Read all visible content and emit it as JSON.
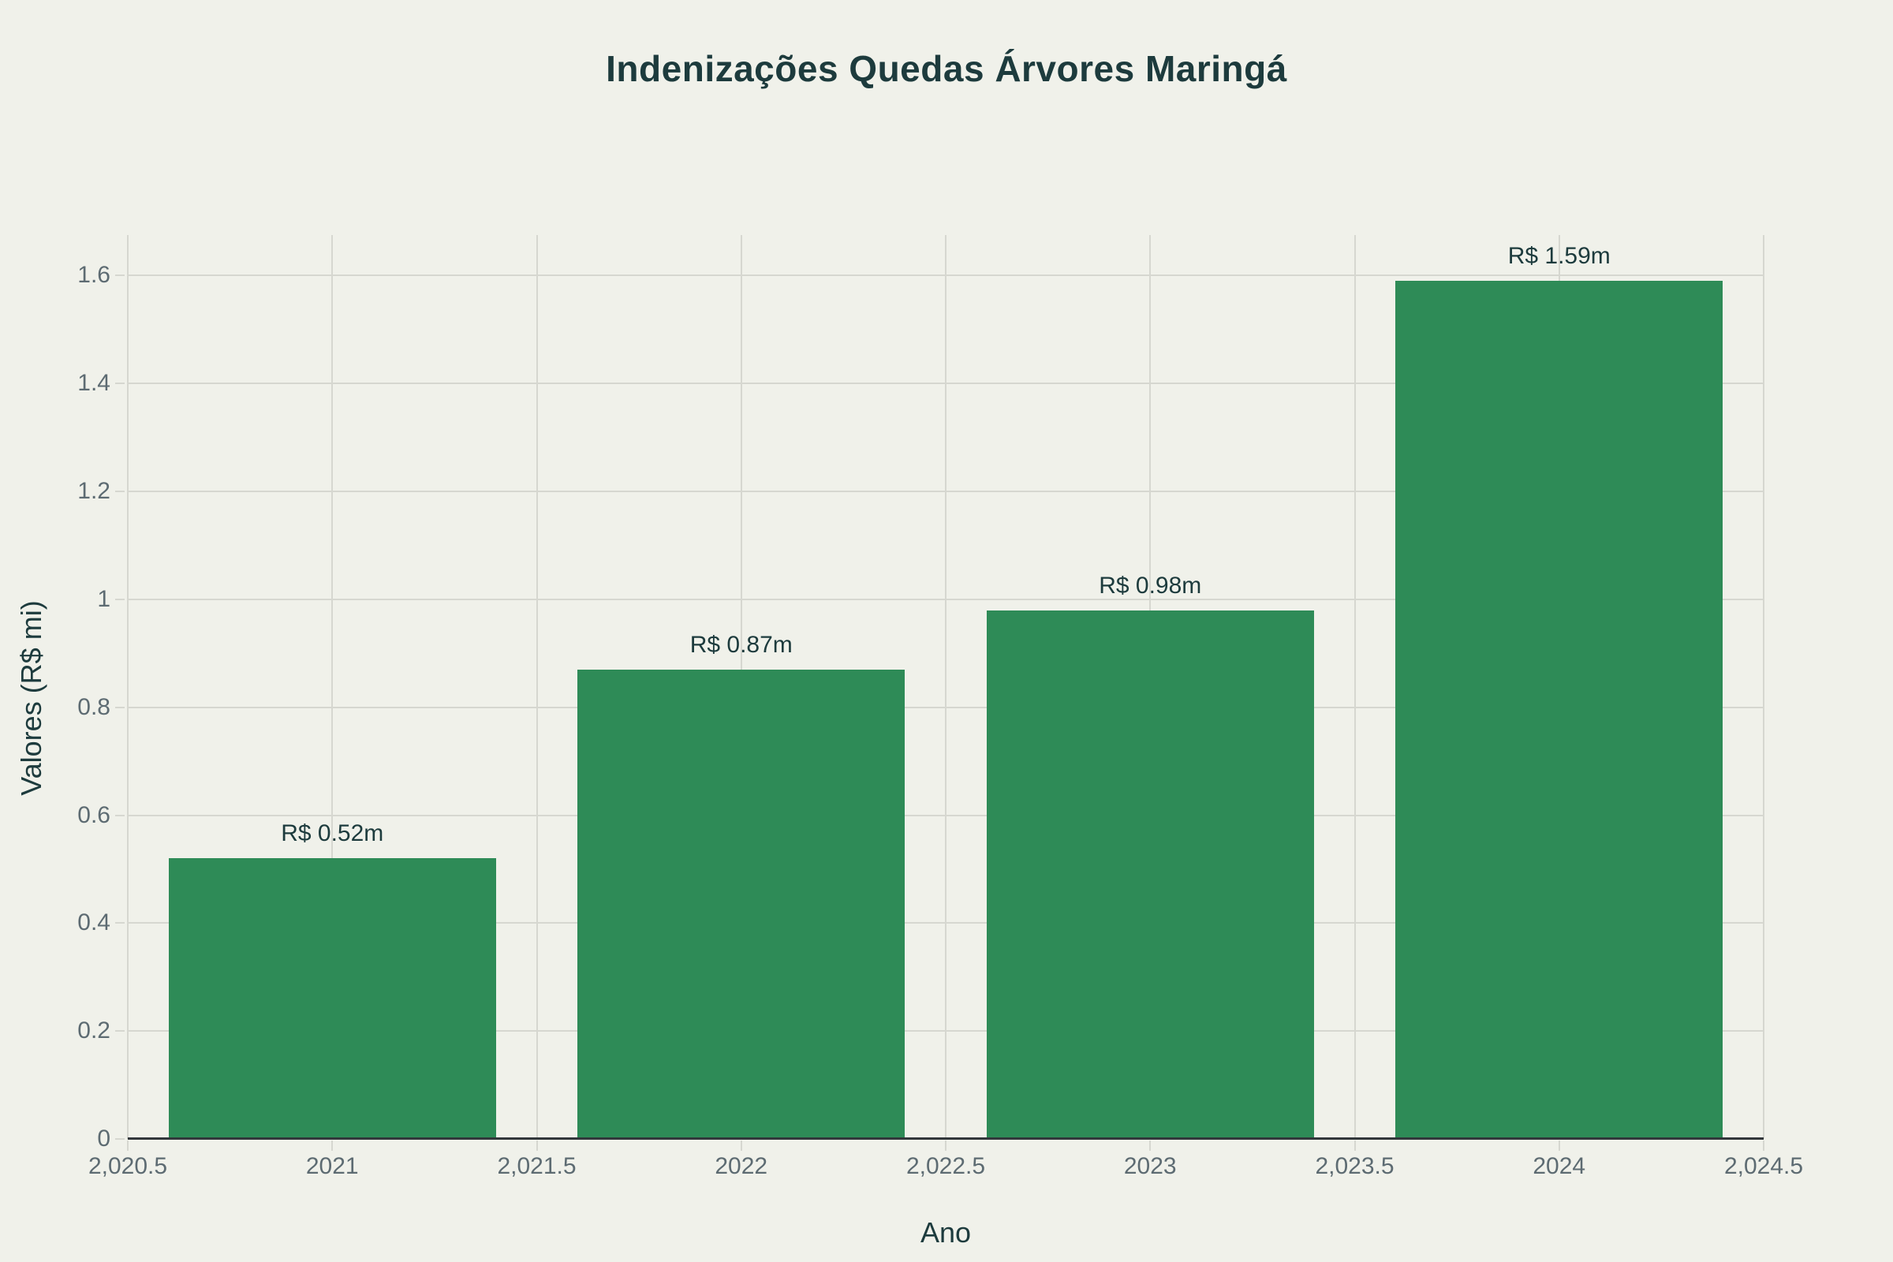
{
  "chart_data": {
    "type": "bar",
    "title": "Indenizações Quedas Árvores Maringá",
    "xlabel": "Ano",
    "ylabel": "Valores (R$ mi)",
    "categories": [
      2021,
      2022,
      2023,
      2024
    ],
    "values": [
      0.52,
      0.87,
      0.98,
      1.59
    ],
    "bar_labels": [
      "R$ 0.52m",
      "R$ 0.87m",
      "R$ 0.98m",
      "R$ 1.59m"
    ],
    "bar_width": 0.8,
    "xlim": [
      2020.5,
      2024.5
    ],
    "ylim": [
      0,
      1.675
    ],
    "xticks": [
      {
        "v": 2020.5,
        "label": "2,020.5"
      },
      {
        "v": 2021,
        "label": "2021"
      },
      {
        "v": 2021.5,
        "label": "2,021.5"
      },
      {
        "v": 2022,
        "label": "2022"
      },
      {
        "v": 2022.5,
        "label": "2,022.5"
      },
      {
        "v": 2023,
        "label": "2023"
      },
      {
        "v": 2023.5,
        "label": "2,023.5"
      },
      {
        "v": 2024,
        "label": "2024"
      },
      {
        "v": 2024.5,
        "label": "2,024.5"
      }
    ],
    "yticks": [
      {
        "v": 0,
        "label": "0"
      },
      {
        "v": 0.2,
        "label": "0.2"
      },
      {
        "v": 0.4,
        "label": "0.4"
      },
      {
        "v": 0.6,
        "label": "0.6"
      },
      {
        "v": 0.8,
        "label": "0.8"
      },
      {
        "v": 1,
        "label": "1"
      },
      {
        "v": 1.2,
        "label": "1.2"
      },
      {
        "v": 1.4,
        "label": "1.4"
      },
      {
        "v": 1.6,
        "label": "1.6"
      }
    ],
    "grid": true,
    "legend": "none",
    "colors": {
      "background": "#f0f1ea",
      "bar": "#2e8b57",
      "title_text": "#1d3b3d",
      "tick_text": "#5d6b72",
      "gridline": "#d6d7d0",
      "axis_line": "#32373b"
    }
  }
}
